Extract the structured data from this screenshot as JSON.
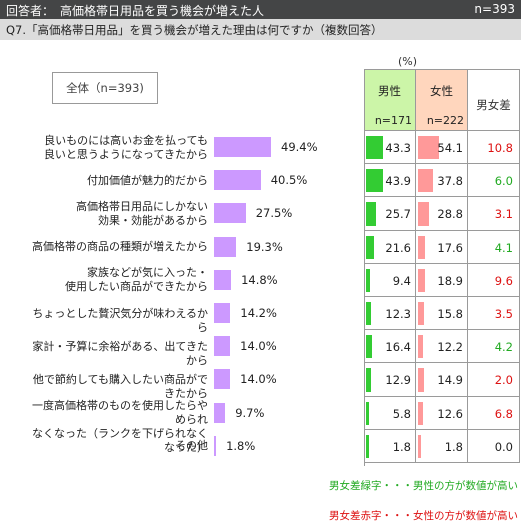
{
  "header": {
    "respondents": "回答者：　高価格帯日用品を買う機会が増えた人",
    "n": "n=393"
  },
  "question": "Q7.「高価格帯日用品」を買う機会が増えた理由は何ですか（複数回答）",
  "overall_box": "全体（n=393)",
  "unit": "(%)",
  "columns": {
    "male": "男性",
    "male_n": "n=171",
    "female": "女性",
    "female_n": "n=222",
    "diff": "男女差"
  },
  "colors": {
    "overall_bar": "#cc99ff",
    "male_bar": "#33cc33",
    "female_bar": "#ff9999",
    "positive": "#22aa22",
    "negative": "#dd1111"
  },
  "chart_data": {
    "type": "bar",
    "categories": [
      "良いものには高いお金を払っても\n良いと思うようになってきたから",
      "付加価値が魅力的だから",
      "高価格帯日用品にしかない\n効果・効能があるから",
      "高価格帯の商品の種類が増えたから",
      "家族などが気に入った・\n使用したい商品ができたから",
      "ちょっとした贅沢気分が味わえるから",
      "家計・予算に余裕がある、出てきたから",
      "他で節約しても購入したい商品ができたから",
      "一度高価格帯のものを使用したらやめられ\nなくなった（ランクを下げられなくなった）",
      "その他"
    ],
    "series": [
      {
        "name": "全体（n=393)",
        "values": [
          49.4,
          40.5,
          27.5,
          19.3,
          14.8,
          14.2,
          14.0,
          14.0,
          9.7,
          1.8
        ],
        "labels": [
          "49.4%",
          "40.5%",
          "27.5%",
          "19.3%",
          "14.8%",
          "14.2%",
          "14.0%",
          "14.0%",
          "9.7%",
          "1.8%"
        ]
      },
      {
        "name": "男性",
        "values": [
          43.3,
          43.9,
          25.7,
          21.6,
          9.4,
          12.3,
          16.4,
          12.9,
          5.8,
          1.8
        ],
        "labels": [
          "43.3",
          "43.9",
          "25.7",
          "21.6",
          "9.4",
          "12.3",
          "16.4",
          "12.9",
          "5.8",
          "1.8"
        ]
      },
      {
        "name": "女性",
        "values": [
          54.1,
          37.8,
          28.8,
          17.6,
          18.9,
          15.8,
          12.2,
          14.9,
          12.6,
          1.8
        ],
        "labels": [
          "54.1",
          "37.8",
          "28.8",
          "17.6",
          "18.9",
          "15.8",
          "12.2",
          "14.9",
          "12.6",
          "1.8"
        ]
      },
      {
        "name": "男女差",
        "values": [
          10.8,
          6.0,
          3.1,
          4.1,
          9.6,
          3.5,
          4.2,
          2.0,
          6.8,
          0.0
        ],
        "labels": [
          "10.8",
          "6.0",
          "3.1",
          "4.1",
          "9.6",
          "3.5",
          "4.2",
          "2.0",
          "6.8",
          "0.0"
        ],
        "sign": [
          "red",
          "green",
          "red",
          "green",
          "red",
          "red",
          "green",
          "red",
          "red",
          "none"
        ]
      }
    ]
  },
  "legend": {
    "green": "男女差緑字・・・男性の方が数値が高い",
    "red": "男女差赤字・・・女性の方が数値が高い"
  }
}
